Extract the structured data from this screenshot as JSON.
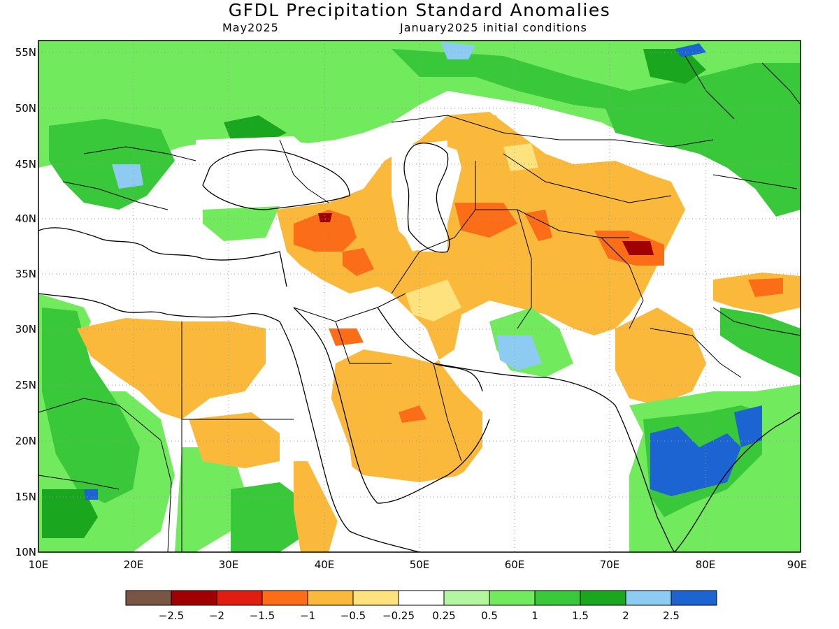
{
  "title": "GFDL Precipitation Standard Anomalies",
  "subtitle_left": "May2025",
  "subtitle_right": "January2025 initial conditions",
  "axes": {
    "lat_labels": [
      "55N",
      "50N",
      "45N",
      "40N",
      "35N",
      "30N",
      "25N",
      "20N",
      "15N",
      "10N"
    ],
    "lon_labels": [
      "10E",
      "20E",
      "30E",
      "40E",
      "50E",
      "60E",
      "70E",
      "80E",
      "90E"
    ],
    "lat_range": [
      10,
      56.3
    ],
    "lon_range": [
      10,
      90
    ],
    "grid": "dotted"
  },
  "colorbar": {
    "labels": [
      "-2.5",
      "-2",
      "-1.5",
      "-1",
      "-0.5",
      "-0.25",
      "0.25",
      "0.5",
      "1",
      "1.5",
      "2",
      "2.5"
    ],
    "colors": [
      "#7a5543",
      "#a00000",
      "#e01d10",
      "#fc6d18",
      "#fbb93c",
      "#fde27e",
      "#ffffff",
      "#b4f5a0",
      "#72ea5e",
      "#38c83a",
      "#1aa61e",
      "#8ecbf2",
      "#1c64d2"
    ]
  },
  "map_features": [
    "land-outline",
    "country-borders",
    "ocean"
  ],
  "regions": [
    {
      "name": "central-asia-dry-anomaly",
      "level": "-1"
    },
    {
      "name": "arabia-dry-anomaly",
      "level": "-1"
    },
    {
      "name": "anatolia-dry-anomaly",
      "level": "-1.5"
    },
    {
      "name": "north-africa-dry-anomaly",
      "level": "-0.5"
    },
    {
      "name": "india-wet-anomaly",
      "level": "2.5"
    },
    {
      "name": "russia-wet-anomaly",
      "level": "1.5"
    },
    {
      "name": "west-africa-wet-anomaly",
      "level": "1"
    }
  ]
}
